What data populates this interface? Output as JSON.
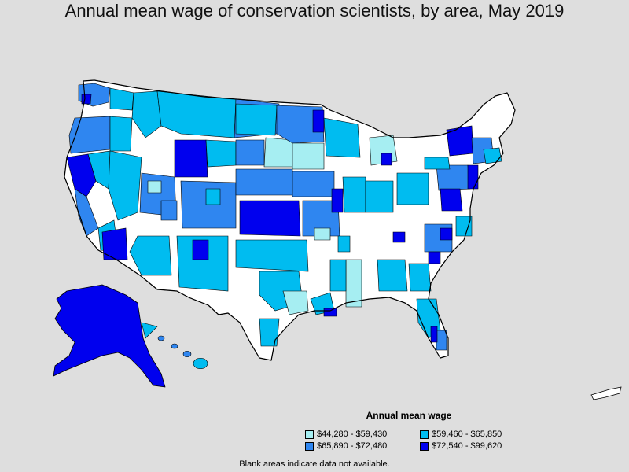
{
  "title": "Annual mean wage of conservation scientists, by area, May 2019",
  "colors": {
    "background": "#dedede",
    "blank": "#ffffff",
    "border": "#000000",
    "tier1": "#a6eef2",
    "tier2": "#00bcf0",
    "tier3": "#2f86f0",
    "tier4": "#0000ee"
  },
  "legend": {
    "title": "Annual mean wage",
    "items": [
      {
        "label": "$44,280 - $59,430",
        "color": "#a6eef2"
      },
      {
        "label": "$59,460 - $65,850",
        "color": "#00bcf0"
      },
      {
        "label": "$65,890 - $72,480",
        "color": "#2f86f0"
      },
      {
        "label": "$72,540 - $99,620",
        "color": "#0000ee"
      }
    ]
  },
  "footnote": "Blank areas indicate data not available."
}
